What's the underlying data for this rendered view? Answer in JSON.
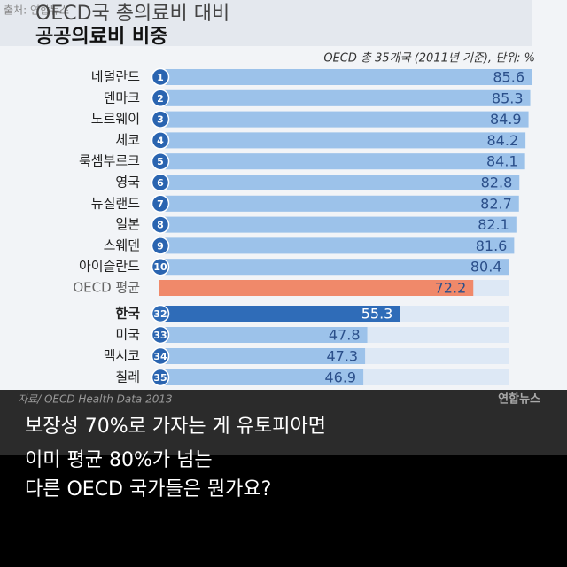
{
  "watermark": "출처: 연합뉴스",
  "chart_data": {
    "type": "bar",
    "orientation": "horizontal",
    "title": "OECD국 총의료비 대비",
    "subtitle": "공공의료비 비중",
    "note": "OECD 총 35개국 (2011년 기준), 단위: %",
    "categories": [
      "네덜란드",
      "덴마크",
      "노르웨이",
      "체코",
      "룩셈부르크",
      "영국",
      "뉴질랜드",
      "일본",
      "스웨덴",
      "아이슬란드",
      "OECD 평균",
      "한국",
      "미국",
      "멕시코",
      "칠레"
    ],
    "ranks": [
      1,
      2,
      3,
      4,
      5,
      6,
      7,
      8,
      9,
      10,
      null,
      32,
      33,
      34,
      35
    ],
    "values": [
      85.6,
      85.3,
      84.9,
      84.2,
      84.1,
      82.8,
      82.7,
      82.1,
      81.6,
      80.4,
      72.2,
      55.3,
      47.8,
      47.3,
      46.9
    ],
    "bar_colors": [
      "#9cc2ea",
      "#9cc2ea",
      "#9cc2ea",
      "#9cc2ea",
      "#9cc2ea",
      "#9cc2ea",
      "#9cc2ea",
      "#9cc2ea",
      "#9cc2ea",
      "#9cc2ea",
      "#f0896a",
      "#2f6cb8",
      "#9cc2ea",
      "#9cc2ea",
      "#9cc2ea"
    ],
    "xlim": [
      0,
      85.6
    ],
    "source": "자료/ OECD Health Data 2013",
    "logo": "연합뉴스"
  },
  "caption": [
    "보장성 70%로 가자는 게 유토피아면",
    "이미 평균 80%가 넘는",
    "다른 OECD 국가들은 뭔가요?"
  ]
}
